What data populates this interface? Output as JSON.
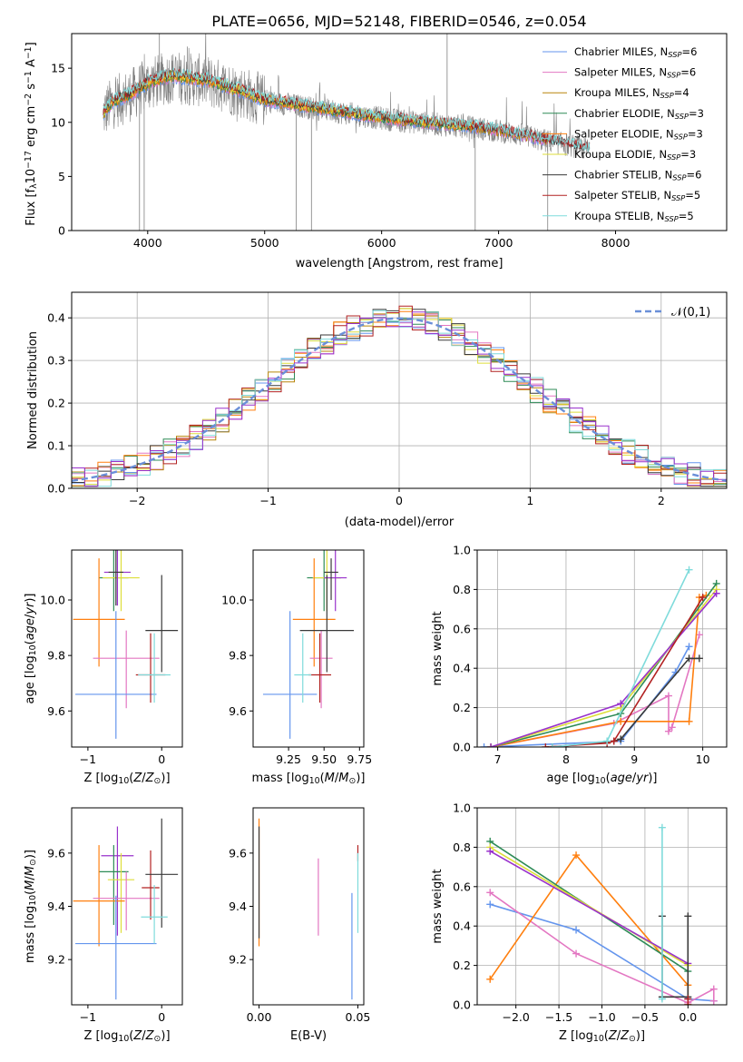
{
  "figure": {
    "title": "PLATE=0656, MJD=52148, FIBERID=0546, z=0.054"
  },
  "chart_data": [
    {
      "id": "spectrum",
      "type": "line",
      "xlabel": "wavelength [Angstrom, rest frame]",
      "ylabel": "Flux [f_λ 10^-17 erg cm^-2 s^-1 A^-1]",
      "xlim": [
        3350,
        8950
      ],
      "ylim": [
        0,
        18.2
      ],
      "xticks": [
        4000,
        5000,
        6000,
        7000,
        8000
      ],
      "yticks": [
        0,
        5,
        10,
        15
      ],
      "grid": false,
      "legend_position": "top-right",
      "data_line": {
        "name": "data",
        "color": "#808080",
        "x_range": [
          3620,
          7780
        ],
        "profile": [
          [
            3620,
            10.8
          ],
          [
            3700,
            11.8
          ],
          [
            3850,
            12.5
          ],
          [
            4000,
            13.5
          ],
          [
            4200,
            14.2
          ],
          [
            4500,
            13.8
          ],
          [
            4800,
            12.8
          ],
          [
            5000,
            12.0
          ],
          [
            5300,
            11.5
          ],
          [
            5600,
            11.0
          ],
          [
            5900,
            10.5
          ],
          [
            6200,
            10.1
          ],
          [
            6500,
            9.8
          ],
          [
            6800,
            9.5
          ],
          [
            7000,
            9.2
          ],
          [
            7200,
            8.8
          ],
          [
            7400,
            8.3
          ],
          [
            7600,
            7.9
          ],
          [
            7780,
            7.5
          ]
        ],
        "spikes": [
          [
            3930,
            0
          ],
          [
            3970,
            0
          ],
          [
            4100,
            18.2
          ],
          [
            4340,
            17.0
          ],
          [
            5270,
            0
          ],
          [
            5400,
            0
          ],
          [
            6560,
            18.2
          ],
          [
            6800,
            0
          ],
          [
            7420,
            0
          ]
        ]
      },
      "series": [
        {
          "name": "Chabrier MILES",
          "nssp": "6",
          "color": "#6495ed",
          "x_range": [
            3620,
            7420
          ]
        },
        {
          "name": "Salpeter MILES",
          "nssp": "6",
          "color": "#e377c2",
          "x_range": [
            3620,
            7420
          ]
        },
        {
          "name": "Kroupa MILES",
          "nssp": "4",
          "color": "#b8860b",
          "x_range": [
            3620,
            7420
          ]
        },
        {
          "name": "Chabrier ELODIE",
          "nssp": "3",
          "color": "#2e8b57",
          "x_range": [
            3620,
            6800
          ]
        },
        {
          "name": "Salpeter ELODIE",
          "nssp": "3",
          "color": "#ff7f0e",
          "x_range": [
            3620,
            6800
          ]
        },
        {
          "name": "Kroupa ELODIE",
          "nssp": "3",
          "color": "#dede3a",
          "x_range": [
            3620,
            6800
          ]
        },
        {
          "name": "Chabrier STELIB",
          "nssp": "6",
          "color": "#3a3a3a",
          "x_range": [
            3620,
            7780
          ]
        },
        {
          "name": "Salpeter STELIB",
          "nssp": "5",
          "color": "#b22222",
          "x_range": [
            3620,
            7780
          ]
        },
        {
          "name": "Kroupa STELIB",
          "nssp": "5",
          "color": "#7fdbdb",
          "x_range": [
            3620,
            7780
          ]
        }
      ]
    },
    {
      "id": "residuals",
      "type": "line",
      "xlabel": "(data-model)/error",
      "ylabel": "Normed distribution",
      "xlim": [
        -2.5,
        2.5
      ],
      "ylim": [
        0,
        0.46
      ],
      "xticks": [
        -2,
        -1,
        0,
        1,
        2
      ],
      "yticks": [
        0.0,
        0.1,
        0.2,
        0.3,
        0.4
      ],
      "grid": true,
      "legend_position": "top-right",
      "reference": {
        "name": "𝒩(0,1)",
        "color": "#6a8fd8",
        "style": "dashed"
      },
      "bin_width": 0.1,
      "series_colors": [
        "#6495ed",
        "#e377c2",
        "#b8860b",
        "#2e8b57",
        "#ff7f0e",
        "#dede3a",
        "#3a3a3a",
        "#b22222",
        "#7fdbdb",
        "#9932cc"
      ]
    },
    {
      "id": "age-vs-z",
      "type": "errorbar",
      "xlabel": "Z [log10(Z/Z⊙)]",
      "ylabel": "age [log10(age/yr)]",
      "xlim": [
        -1.22,
        0.28
      ],
      "ylim": [
        9.47,
        10.18
      ],
      "xticks": [
        -1,
        0
      ],
      "yticks": [
        9.6,
        9.8,
        10.0
      ],
      "grid": false,
      "points": [
        {
          "x": -0.65,
          "y": 10.08,
          "xerr": 0.2,
          "yerr": [
            0.12,
            0.1
          ],
          "color": "#2e8b57"
        },
        {
          "x": -0.55,
          "y": 10.08,
          "xerr": 0.25,
          "yerr": [
            0.12,
            0.1
          ],
          "color": "#dede3a"
        },
        {
          "x": -0.6,
          "y": 10.1,
          "xerr": 0.18,
          "yerr": [
            0.12,
            0.1
          ],
          "color": "#9932cc"
        },
        {
          "x": -0.62,
          "y": 10.1,
          "xerr": 0.1,
          "yerr": [
            0.12,
            0.1
          ],
          "color": "#3a3a3a"
        },
        {
          "x": -0.85,
          "y": 9.93,
          "xerr": 0.35,
          "yerr": [
            0.17,
            0.22
          ],
          "color": "#ff7f0e"
        },
        {
          "x": -0.48,
          "y": 9.79,
          "xerr": 0.45,
          "yerr": [
            0.18,
            0.1
          ],
          "color": "#e377c2"
        },
        {
          "x": -0.62,
          "y": 9.66,
          "xerr": 0.55,
          "yerr": [
            0.16,
            0.3
          ],
          "color": "#6495ed"
        },
        {
          "x": -0.15,
          "y": 9.73,
          "xerr": 0.2,
          "yerr": [
            0.1,
            0.15
          ],
          "color": "#b22222"
        },
        {
          "x": 0.0,
          "y": 9.89,
          "xerr": 0.22,
          "yerr": [
            0.15,
            0.2
          ],
          "color": "#3a3a3a"
        },
        {
          "x": -0.1,
          "y": 9.73,
          "xerr": 0.22,
          "yerr": [
            0.1,
            0.15
          ],
          "color": "#7fdbdb"
        }
      ]
    },
    {
      "id": "age-vs-mass",
      "type": "errorbar",
      "xlabel": "mass [log10(M/M⊙)]",
      "ylabel": "",
      "xlim": [
        9.0,
        9.78
      ],
      "ylim": [
        9.47,
        10.18
      ],
      "xticks": [
        9.25,
        9.5,
        9.75
      ],
      "yticks": [
        9.6,
        9.8,
        10.0
      ],
      "grid": false,
      "points": [
        {
          "x": 9.5,
          "y": 10.08,
          "xerr": 0.12,
          "yerr": [
            0.12,
            0.1
          ],
          "color": "#2e8b57"
        },
        {
          "x": 9.52,
          "y": 10.08,
          "xerr": 0.1,
          "yerr": [
            0.12,
            0.1
          ],
          "color": "#dede3a"
        },
        {
          "x": 9.58,
          "y": 10.08,
          "xerr": 0.08,
          "yerr": [
            0.12,
            0.1
          ],
          "color": "#9932cc"
        },
        {
          "x": 9.55,
          "y": 10.1,
          "xerr": 0.05,
          "yerr": [
            0.1,
            0.05
          ],
          "color": "#3a3a3a"
        },
        {
          "x": 9.43,
          "y": 9.93,
          "xerr": 0.15,
          "yerr": [
            0.17,
            0.22
          ],
          "color": "#ff7f0e"
        },
        {
          "x": 9.48,
          "y": 9.79,
          "xerr": 0.08,
          "yerr": [
            0.18,
            0.1
          ],
          "color": "#e377c2"
        },
        {
          "x": 9.26,
          "y": 9.66,
          "xerr": 0.19,
          "yerr": [
            0.16,
            0.3
          ],
          "color": "#6495ed"
        },
        {
          "x": 9.47,
          "y": 9.73,
          "xerr": 0.08,
          "yerr": [
            0.1,
            0.15
          ],
          "color": "#b22222"
        },
        {
          "x": 9.52,
          "y": 9.89,
          "xerr": 0.19,
          "yerr": [
            0.15,
            0.2
          ],
          "color": "#3a3a3a"
        },
        {
          "x": 9.35,
          "y": 9.73,
          "xerr": 0.06,
          "yerr": [
            0.1,
            0.15
          ],
          "color": "#7fdbdb"
        }
      ]
    },
    {
      "id": "massweight-vs-age",
      "type": "line",
      "xlabel": "age [log10(age/yr)]",
      "ylabel": "mass weight",
      "xlim": [
        6.7,
        10.35
      ],
      "ylim": [
        0.0,
        1.0
      ],
      "xticks": [
        7,
        8,
        9,
        10
      ],
      "yticks": [
        0.0,
        0.2,
        0.4,
        0.6,
        0.8,
        1.0
      ],
      "grid": true,
      "series": [
        {
          "color": "#6495ed",
          "x": [
            6.8,
            8.8,
            9.6,
            9.8
          ],
          "y": [
            0.0,
            0.03,
            0.38,
            0.51
          ]
        },
        {
          "color": "#e377c2",
          "x": [
            6.9,
            8.7,
            9.5,
            9.5,
            9.55,
            9.95
          ],
          "y": [
            0.0,
            0.12,
            0.26,
            0.08,
            0.1,
            0.57
          ]
        },
        {
          "color": "#ff7f0e",
          "x": [
            6.9,
            8.8,
            9.8,
            9.95,
            10.05
          ],
          "y": [
            0.0,
            0.13,
            0.13,
            0.76,
            0.77
          ]
        },
        {
          "color": "#2e8b57",
          "x": [
            6.9,
            8.8,
            10.2
          ],
          "y": [
            0.0,
            0.17,
            0.83
          ]
        },
        {
          "color": "#dede3a",
          "x": [
            6.9,
            8.8,
            10.2
          ],
          "y": [
            0.0,
            0.2,
            0.8
          ]
        },
        {
          "color": "#9932cc",
          "x": [
            6.9,
            8.8,
            10.2
          ],
          "y": [
            0.0,
            0.22,
            0.78
          ]
        },
        {
          "color": "#3a3a3a",
          "x": [
            7.8,
            8.7,
            8.8,
            9.8,
            9.95
          ],
          "y": [
            0.0,
            0.03,
            0.04,
            0.45,
            0.45
          ]
        },
        {
          "color": "#b22222",
          "x": [
            7.7,
            8.6,
            8.7,
            10.0
          ],
          "y": [
            0.0,
            0.02,
            0.03,
            0.76
          ]
        },
        {
          "color": "#7fdbdb",
          "x": [
            7.8,
            8.6,
            9.8
          ],
          "y": [
            0.0,
            0.03,
            0.9
          ]
        }
      ]
    },
    {
      "id": "mass-vs-z",
      "type": "errorbar",
      "xlabel": "Z [log10(Z/Z⊙)]",
      "ylabel": "mass [log10(M/M⊙)]",
      "xlim": [
        -1.22,
        0.28
      ],
      "ylim": [
        9.03,
        9.77
      ],
      "xticks": [
        -1,
        0
      ],
      "yticks": [
        9.2,
        9.4,
        9.6
      ],
      "grid": false,
      "points": [
        {
          "x": -0.6,
          "y": 9.59,
          "xerr": 0.22,
          "yerr": [
            0.3,
            0.11
          ],
          "color": "#9932cc"
        },
        {
          "x": -0.65,
          "y": 9.53,
          "xerr": 0.2,
          "yerr": [
            0.2,
            0.1
          ],
          "color": "#2e8b57"
        },
        {
          "x": -0.55,
          "y": 9.5,
          "xerr": 0.18,
          "yerr": [
            0.2,
            0.1
          ],
          "color": "#dede3a"
        },
        {
          "x": -0.85,
          "y": 9.42,
          "xerr": 0.35,
          "yerr": [
            0.17,
            0.21
          ],
          "color": "#ff7f0e"
        },
        {
          "x": -0.48,
          "y": 9.43,
          "xerr": 0.45,
          "yerr": [
            0.12,
            0.1
          ],
          "color": "#e377c2"
        },
        {
          "x": -0.62,
          "y": 9.26,
          "xerr": 0.55,
          "yerr": [
            0.21,
            0.18
          ],
          "color": "#6495ed"
        },
        {
          "x": -0.15,
          "y": 9.47,
          "xerr": 0.12,
          "yerr": [
            0.12,
            0.14
          ],
          "color": "#b22222"
        },
        {
          "x": 0.0,
          "y": 9.52,
          "xerr": 0.22,
          "yerr": [
            0.2,
            0.21
          ],
          "color": "#3a3a3a"
        },
        {
          "x": -0.1,
          "y": 9.36,
          "xerr": 0.18,
          "yerr": [
            0.1,
            0.12
          ],
          "color": "#7fdbdb"
        }
      ]
    },
    {
      "id": "ebv",
      "type": "errorbar",
      "xlabel": "E(B-V)",
      "ylabel": "",
      "xlim": [
        -0.003,
        0.053
      ],
      "ylim": [
        9.03,
        9.77
      ],
      "xticks": [
        0.0,
        0.05
      ],
      "yticks": [
        9.2,
        9.4,
        9.6
      ],
      "grid": false,
      "points": [
        {
          "x": 0.0,
          "y": 9.5,
          "yerr": [
            0.25,
            0.23
          ],
          "color": "#ff7f0e"
        },
        {
          "x": 0.0,
          "y": 9.5,
          "yerr": [
            0.22,
            0.2
          ],
          "color": "#3a3a3a"
        },
        {
          "x": 0.03,
          "y": 9.44,
          "yerr": [
            0.15,
            0.14
          ],
          "color": "#e377c2"
        },
        {
          "x": 0.047,
          "y": 9.26,
          "yerr": [
            0.21,
            0.19
          ],
          "color": "#6495ed"
        },
        {
          "x": 0.05,
          "y": 9.6,
          "yerr": [
            0.03,
            0.03
          ],
          "color": "#b22222"
        },
        {
          "x": 0.05,
          "y": 9.5,
          "yerr": [
            0.2,
            0.1
          ],
          "color": "#7fdbdb"
        }
      ]
    },
    {
      "id": "massweight-vs-z",
      "type": "line",
      "xlabel": "Z [log10(Z/Z⊙)]",
      "ylabel": "mass weight",
      "xlim": [
        -2.45,
        0.45
      ],
      "ylim": [
        0.0,
        1.0
      ],
      "xticks": [
        -2.0,
        -1.5,
        -1.0,
        -0.5,
        0.0
      ],
      "yticks": [
        0.0,
        0.2,
        0.4,
        0.6,
        0.8,
        1.0
      ],
      "grid": true,
      "series": [
        {
          "color": "#6495ed",
          "x": [
            -2.3,
            -1.3,
            0.0,
            0.3
          ],
          "y": [
            0.51,
            0.38,
            0.03,
            0.02
          ]
        },
        {
          "color": "#e377c2",
          "x": [
            -2.3,
            -1.3,
            0.0,
            0.3,
            0.3
          ],
          "y": [
            0.57,
            0.26,
            0.01,
            0.08,
            0.02
          ]
        },
        {
          "color": "#ff7f0e",
          "x": [
            -2.3,
            -1.3,
            0.0,
            0.0
          ],
          "y": [
            0.13,
            0.76,
            0.1,
            0.0
          ]
        },
        {
          "color": "#2e8b57",
          "x": [
            -2.3,
            0.0
          ],
          "y": [
            0.83,
            0.17
          ]
        },
        {
          "color": "#dede3a",
          "x": [
            -2.3,
            0.0
          ],
          "y": [
            0.8,
            0.2
          ]
        },
        {
          "color": "#9932cc",
          "x": [
            -2.3,
            0.0
          ],
          "y": [
            0.78,
            0.21
          ]
        },
        {
          "color": "#3a3a3a",
          "x": [
            -0.3,
            -0.3,
            0.0,
            0.0
          ],
          "y": [
            0.45,
            0.04,
            0.04,
            0.45
          ]
        },
        {
          "color": "#b22222",
          "x": [
            0.0,
            0.0
          ],
          "y": [
            0.0,
            0.03
          ]
        },
        {
          "color": "#7fdbdb",
          "x": [
            -0.3,
            -0.3
          ],
          "y": [
            0.9,
            0.03
          ]
        }
      ]
    }
  ]
}
